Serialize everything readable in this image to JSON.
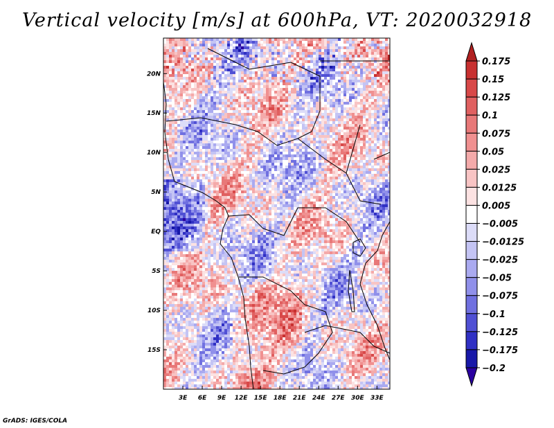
{
  "chart_data": {
    "type": "heatmap",
    "title": "Vertical velocity [m/s] at 600hPa, VT: 2020032918",
    "variable": "Vertical velocity",
    "units": "m/s",
    "level": "600hPa",
    "valid_time": "2020032918",
    "lon_range": [
      0,
      35
    ],
    "lat_range": [
      -20,
      24.5
    ],
    "x_ticks": [
      "3E",
      "6E",
      "9E",
      "12E",
      "15E",
      "18E",
      "21E",
      "24E",
      "27E",
      "30E",
      "33E"
    ],
    "x_tick_values": [
      3,
      6,
      9,
      12,
      15,
      18,
      21,
      24,
      27,
      30,
      33
    ],
    "y_ticks": [
      "20N",
      "15N",
      "10N",
      "5N",
      "EQ",
      "5S",
      "10S",
      "15S"
    ],
    "y_tick_values": [
      20,
      15,
      10,
      5,
      0,
      -5,
      -10,
      -15
    ],
    "colorbar": {
      "levels": [
        "0.175",
        "0.15",
        "0.125",
        "0.1",
        "0.075",
        "0.05",
        "0.025",
        "0.0125",
        "0.005",
        "−0.005",
        "−0.0125",
        "−0.025",
        "−0.05",
        "−0.075",
        "−0.1",
        "−0.125",
        "−0.175",
        "−0.2"
      ],
      "colors": [
        "#b02020",
        "#c83030",
        "#d84848",
        "#e06060",
        "#e87878",
        "#f09090",
        "#f4aaaa",
        "#f8c4c4",
        "#fce2e2",
        "#ffffff",
        "#dcdcf8",
        "#c4c4f4",
        "#aaaaf0",
        "#9090ea",
        "#7070e0",
        "#5050d4",
        "#3030c4",
        "#1818a8",
        "#2a00a0"
      ]
    }
  },
  "footer": "GrADS: IGES/COLA"
}
